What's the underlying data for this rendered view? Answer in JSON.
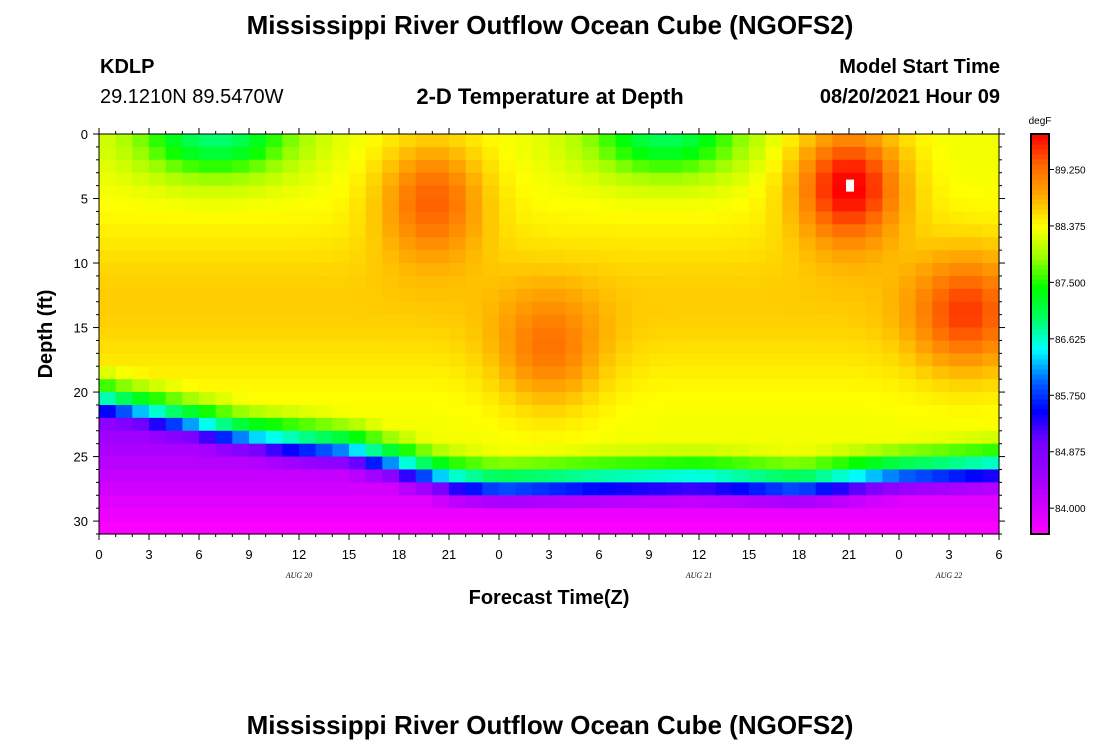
{
  "header": {
    "title": "Mississippi River Outflow Ocean Cube (NGOFS2)",
    "station_id": "KDLP",
    "station_coords": "29.1210N  89.5470W",
    "plot_title": "2-D Temperature at Depth",
    "model_start_label": "Model Start Time",
    "model_start_value": "08/20/2021 Hour 09"
  },
  "footer": {
    "title": "Mississippi River Outflow Ocean Cube (NGOFS2)"
  },
  "chart_data": {
    "type": "heatmap",
    "title": "2-D Temperature at Depth",
    "xlabel": "Forecast Time(Z)",
    "ylabel": "Depth (ft)",
    "x_hours_range": [
      0,
      54
    ],
    "x_tick_hours": [
      0,
      3,
      6,
      9,
      12,
      15,
      18,
      21,
      24,
      27,
      30,
      33,
      36,
      39,
      42,
      45,
      48,
      51,
      54
    ],
    "x_tick_labels": [
      "0",
      "3",
      "6",
      "9",
      "12",
      "15",
      "18",
      "21",
      "0",
      "3",
      "6",
      "9",
      "12",
      "15",
      "18",
      "21",
      "0",
      "3",
      "6"
    ],
    "date_labels": [
      {
        "text": "AUG  20",
        "hour": 12
      },
      {
        "text": "AUG  21",
        "hour": 36
      },
      {
        "text": "AUG  22",
        "hour": 51
      }
    ],
    "ylim": [
      0,
      31
    ],
    "y_inverted": true,
    "y_ticks": [
      0,
      5,
      10,
      15,
      20,
      25,
      30
    ],
    "y_tick_labels": [
      "0",
      "5",
      "10",
      "15",
      "20",
      "25",
      "30"
    ],
    "colorbar": {
      "unit": "degF",
      "min": 83.6,
      "max": 89.8,
      "ticks": [
        84.0,
        84.875,
        85.75,
        86.625,
        87.5,
        88.375,
        89.25
      ],
      "tick_labels": [
        "84.000",
        "84.875",
        "85.750",
        "86.625",
        "87.500",
        "88.375",
        "89.250"
      ],
      "colors": [
        "#ff00ff",
        "#cc00ff",
        "#9900ff",
        "#7700ff",
        "#0000ff",
        "#0066ff",
        "#00ffff",
        "#00ff66",
        "#00ff00",
        "#99ff00",
        "#ffff00",
        "#ffaa00",
        "#ff6600",
        "#ff0000"
      ]
    },
    "grid": {
      "hour_step": 1,
      "depth_step": 1,
      "note": "temperature field (degF) estimated from colors",
      "features": {
        "surface_temp_base": 88.3,
        "warm_cores": [
          {
            "hour": 20,
            "depth": 5,
            "peak": 89.3
          },
          {
            "hour": 27,
            "depth": 17,
            "peak": 89.0
          },
          {
            "hour": 45,
            "depth": 4,
            "peak": 89.8
          },
          {
            "hour": 52,
            "depth": 14,
            "peak": 89.2
          }
        ],
        "cool_surface": [
          {
            "hour": 7,
            "depth": 0,
            "min": 87.2
          },
          {
            "hour": 34,
            "depth": 0,
            "min": 87.3
          }
        ],
        "thermocline_depth_by_hour": [
          [
            0,
            19.5
          ],
          [
            6,
            21.5
          ],
          [
            9,
            22.5
          ],
          [
            15,
            23.5
          ],
          [
            21,
            26
          ],
          [
            24,
            26.5
          ],
          [
            30,
            26.2
          ],
          [
            36,
            26
          ],
          [
            42,
            26.5
          ],
          [
            48,
            25.5
          ],
          [
            54,
            25
          ]
        ],
        "bottom_temp": 83.6
      }
    }
  }
}
